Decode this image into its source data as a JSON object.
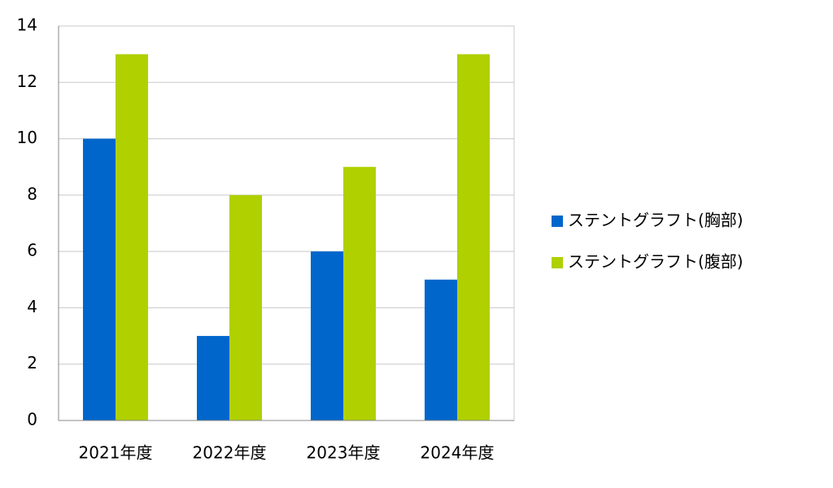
{
  "chart_data": {
    "type": "bar",
    "categories": [
      "2021年度",
      "2022年度",
      "2023年度",
      "2024年度"
    ],
    "series": [
      {
        "name": "ステントグラフト(胸部)",
        "color": "#0066cc",
        "values": [
          10,
          3,
          6,
          5
        ]
      },
      {
        "name": "ステントグラフト(腹部)",
        "color": "#b0d000",
        "values": [
          13,
          8,
          9,
          13
        ]
      }
    ],
    "ylim": [
      0,
      14
    ],
    "yticks": [
      0,
      2,
      4,
      6,
      8,
      10,
      12,
      14
    ],
    "grid": true,
    "legend": "right"
  }
}
